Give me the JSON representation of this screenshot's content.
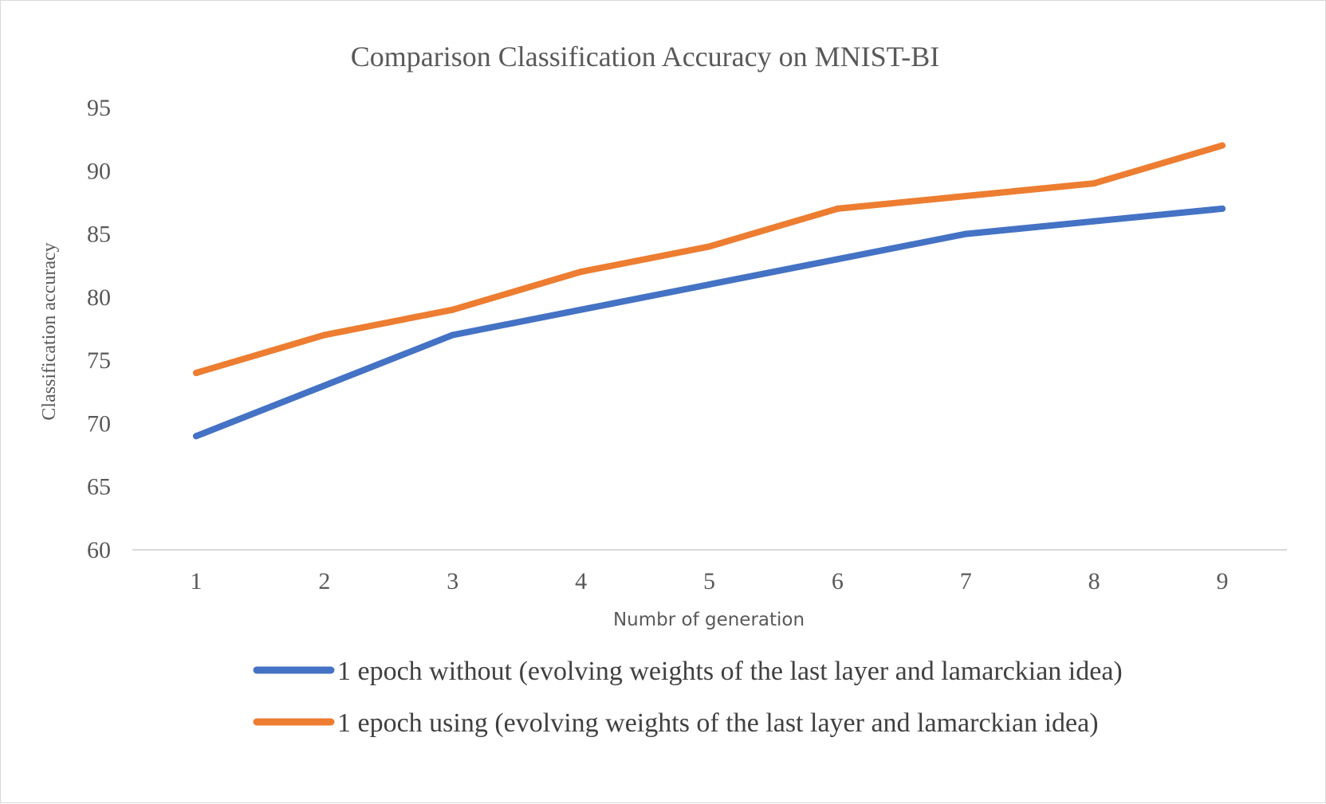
{
  "chart_data": {
    "type": "line",
    "title": "Comparison Classification Accuracy on MNIST-BI",
    "xlabel": "Numbr of generation",
    "ylabel": "Classification accuracy",
    "categories": [
      "1",
      "2",
      "3",
      "4",
      "5",
      "6",
      "7",
      "8",
      "9"
    ],
    "ylim": [
      60,
      95
    ],
    "yticks": [
      "95",
      "90",
      "85",
      "80",
      "75",
      "70",
      "65",
      "60"
    ],
    "grid": false,
    "legend_position": "bottom",
    "series": [
      {
        "name": "1 epoch without (evolving weights of the last layer and lamarckian idea)",
        "color": "#4472C4",
        "values": [
          69,
          73,
          77,
          79,
          81,
          83,
          85,
          86,
          87
        ]
      },
      {
        "name": "1 epoch using (evolving weights of the last layer and lamarckian idea)",
        "color": "#ED7D31",
        "values": [
          74,
          77,
          79,
          82,
          84,
          87,
          88,
          89,
          92
        ]
      }
    ]
  }
}
